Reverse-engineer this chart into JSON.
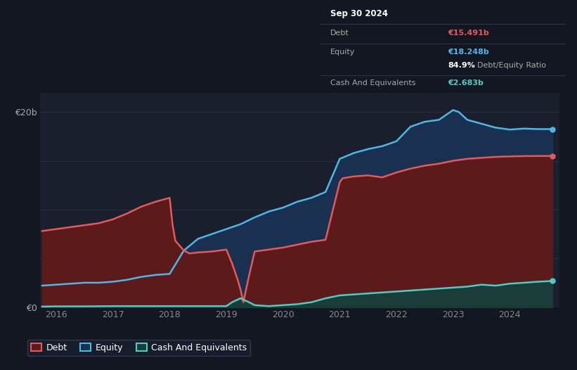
{
  "bg_color": "#131722",
  "plot_bg_color": "#1a1f2e",
  "grid_color": "#2a2e3d",
  "debt_color": "#e05c5c",
  "equity_color": "#4db8e8",
  "cash_color": "#4ecdc4",
  "debt_fill": "#5c1a1a",
  "equity_fill": "#1a3050",
  "cash_fill": "#1a3d3a",
  "tick_color": "#888888",
  "label_color": "#aaaaaa",
  "tooltip_bg": "#0d1117",
  "tooltip_border": "#3a3f55",
  "legend_bg": "#1a1f30",
  "legend_border": "#3a3f50",
  "ylim": [
    0,
    22000000000
  ],
  "yticks": [
    0,
    5000000000,
    10000000000,
    15000000000,
    20000000000
  ],
  "ytick_labels": [
    "€0",
    "",
    "",
    "",
    "€20b"
  ],
  "x_years": [
    2016,
    2017,
    2018,
    2019,
    2020,
    2021,
    2022,
    2023,
    2024
  ],
  "tooltip": {
    "date": "Sep 30 2024",
    "debt_label": "Debt",
    "debt_value": "€15.491b",
    "equity_label": "Equity",
    "equity_value": "€18.248b",
    "ratio_pct": "84.9%",
    "ratio_label": "Debt/Equity Ratio",
    "cash_label": "Cash And Equivalents",
    "cash_value": "€2.683b"
  },
  "equity_x": [
    2015.75,
    2016.0,
    2016.25,
    2016.5,
    2016.75,
    2017.0,
    2017.25,
    2017.5,
    2017.75,
    2018.0,
    2018.25,
    2018.5,
    2018.75,
    2019.0,
    2019.25,
    2019.5,
    2019.75,
    2020.0,
    2020.25,
    2020.5,
    2020.75,
    2021.0,
    2021.25,
    2021.5,
    2021.75,
    2022.0,
    2022.25,
    2022.5,
    2022.75,
    2023.0,
    2023.1,
    2023.25,
    2023.5,
    2023.75,
    2024.0,
    2024.25,
    2024.5,
    2024.75
  ],
  "equity_y": [
    2200000000,
    2300000000,
    2400000000,
    2500000000,
    2500000000,
    2600000000,
    2800000000,
    3100000000,
    3300000000,
    3400000000,
    5800000000,
    7000000000,
    7500000000,
    8000000000,
    8500000000,
    9200000000,
    9800000000,
    10200000000,
    10800000000,
    11200000000,
    11800000000,
    15200000000,
    15800000000,
    16200000000,
    16500000000,
    17000000000,
    18500000000,
    19000000000,
    19200000000,
    20200000000,
    20000000000,
    19200000000,
    18800000000,
    18400000000,
    18200000000,
    18300000000,
    18250000000,
    18248000000
  ],
  "debt_x": [
    2015.75,
    2016.0,
    2016.25,
    2016.5,
    2016.75,
    2017.0,
    2017.25,
    2017.5,
    2017.75,
    2018.0,
    2018.05,
    2018.1,
    2018.25,
    2018.35,
    2018.5,
    2018.75,
    2019.0,
    2019.1,
    2019.2,
    2019.25,
    2019.3,
    2019.4,
    2019.5,
    2019.75,
    2020.0,
    2020.25,
    2020.5,
    2020.75,
    2021.0,
    2021.05,
    2021.25,
    2021.5,
    2021.75,
    2022.0,
    2022.25,
    2022.5,
    2022.75,
    2023.0,
    2023.25,
    2023.5,
    2023.75,
    2024.0,
    2024.25,
    2024.5,
    2024.75
  ],
  "debt_y": [
    7800000000,
    8000000000,
    8200000000,
    8400000000,
    8600000000,
    9000000000,
    9600000000,
    10300000000,
    10800000000,
    11200000000,
    8500000000,
    6800000000,
    5800000000,
    5500000000,
    5600000000,
    5700000000,
    5900000000,
    4500000000,
    2800000000,
    1800000000,
    500000000,
    3200000000,
    5700000000,
    5900000000,
    6100000000,
    6400000000,
    6700000000,
    6900000000,
    12800000000,
    13200000000,
    13400000000,
    13500000000,
    13300000000,
    13800000000,
    14200000000,
    14500000000,
    14700000000,
    15000000000,
    15200000000,
    15300000000,
    15400000000,
    15450000000,
    15480000000,
    15491000000,
    15491000000
  ],
  "cash_x": [
    2015.75,
    2016.0,
    2016.5,
    2017.0,
    2017.5,
    2018.0,
    2018.5,
    2019.0,
    2019.1,
    2019.25,
    2019.4,
    2019.5,
    2019.75,
    2020.0,
    2020.25,
    2020.5,
    2020.75,
    2021.0,
    2021.25,
    2021.5,
    2021.75,
    2022.0,
    2022.25,
    2022.5,
    2022.75,
    2023.0,
    2023.25,
    2023.5,
    2023.75,
    2024.0,
    2024.25,
    2024.5,
    2024.75
  ],
  "cash_y": [
    50000000,
    80000000,
    80000000,
    100000000,
    100000000,
    100000000,
    100000000,
    100000000,
    500000000,
    900000000,
    500000000,
    200000000,
    100000000,
    200000000,
    300000000,
    500000000,
    900000000,
    1200000000,
    1300000000,
    1400000000,
    1500000000,
    1600000000,
    1700000000,
    1800000000,
    1900000000,
    2000000000,
    2100000000,
    2300000000,
    2200000000,
    2400000000,
    2500000000,
    2600000000,
    2683000000
  ]
}
